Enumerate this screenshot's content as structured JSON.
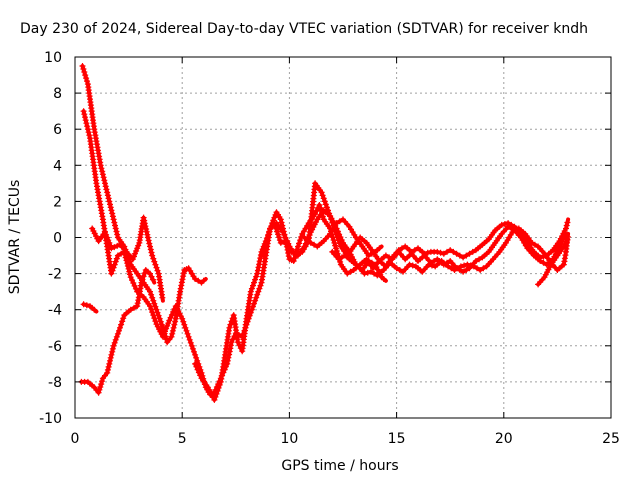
{
  "chart_data": {
    "type": "line",
    "title": "Day 230 of 2024, Sidereal Day-to-day VTEC variation (SDTVAR) for receiver kndh",
    "xlabel": "GPS time / hours",
    "ylabel": "SDTVAR / TECUs",
    "xlim": [
      0,
      25
    ],
    "ylim": [
      -10,
      10
    ],
    "xticks": [
      0,
      5,
      10,
      15,
      20,
      25
    ],
    "yticks": [
      -10,
      -8,
      -6,
      -4,
      -2,
      0,
      2,
      4,
      6,
      8,
      10
    ],
    "grid": true,
    "marker": "+",
    "color": "#ff0000",
    "series": [
      {
        "name": "trace-1",
        "points": [
          [
            0.35,
            9.5
          ],
          [
            0.6,
            8.5
          ],
          [
            0.9,
            6.0
          ],
          [
            1.2,
            4.0
          ],
          [
            1.5,
            2.5
          ],
          [
            1.8,
            1.0
          ],
          [
            2.0,
            0.0
          ],
          [
            2.3,
            -0.5
          ],
          [
            2.6,
            -1.5
          ],
          [
            2.9,
            -2.0
          ],
          [
            3.2,
            -2.5
          ],
          [
            3.5,
            -3.0
          ],
          [
            3.8,
            -4.0
          ],
          [
            4.1,
            -5.0
          ],
          [
            4.3,
            -5.8
          ],
          [
            4.5,
            -5.5
          ],
          [
            4.7,
            -4.5
          ],
          [
            4.9,
            -3.0
          ],
          [
            5.1,
            -1.8
          ],
          [
            5.3,
            -1.7
          ],
          [
            5.6,
            -2.3
          ],
          [
            5.9,
            -2.5
          ],
          [
            6.1,
            -2.3
          ]
        ]
      },
      {
        "name": "trace-2",
        "points": [
          [
            0.4,
            7.0
          ],
          [
            0.7,
            5.5
          ],
          [
            1.0,
            3.0
          ],
          [
            1.3,
            1.0
          ],
          [
            1.5,
            -0.5
          ],
          [
            1.7,
            -2.0
          ],
          [
            2.0,
            -1.0
          ],
          [
            2.3,
            -0.8
          ],
          [
            2.6,
            -2.2
          ],
          [
            2.9,
            -3.0
          ],
          [
            3.2,
            -3.3
          ],
          [
            3.5,
            -3.8
          ],
          [
            3.8,
            -4.8
          ],
          [
            4.1,
            -5.5
          ],
          [
            4.4,
            -4.6
          ],
          [
            4.7,
            -3.8
          ],
          [
            5.0,
            -4.5
          ],
          [
            5.3,
            -5.5
          ],
          [
            5.6,
            -6.5
          ],
          [
            5.9,
            -7.5
          ],
          [
            6.1,
            -8.3
          ],
          [
            6.3,
            -8.7
          ],
          [
            6.5,
            -8.6
          ],
          [
            6.8,
            -7.8
          ],
          [
            7.1,
            -7.0
          ],
          [
            7.3,
            -5.8
          ],
          [
            7.5,
            -5.3
          ],
          [
            7.8,
            -5.5
          ],
          [
            8.1,
            -4.5
          ],
          [
            8.4,
            -3.5
          ],
          [
            8.7,
            -2.5
          ],
          [
            8.9,
            -1.0
          ],
          [
            9.1,
            0.5
          ],
          [
            9.3,
            0.8
          ],
          [
            9.6,
            -0.3
          ],
          [
            9.9,
            -0.2
          ],
          [
            10.1,
            -0.8
          ],
          [
            10.4,
            -1.0
          ],
          [
            10.7,
            -0.5
          ],
          [
            11.0,
            0.3
          ],
          [
            11.3,
            1.0
          ],
          [
            11.6,
            1.5
          ],
          [
            11.9,
            1.2
          ],
          [
            12.2,
            0.5
          ],
          [
            12.5,
            -0.3
          ],
          [
            12.8,
            -0.8
          ],
          [
            13.1,
            -1.5
          ],
          [
            13.4,
            -1.8
          ],
          [
            13.7,
            -1.3
          ],
          [
            14.0,
            -1.5
          ],
          [
            14.3,
            -2.2
          ],
          [
            14.5,
            -2.4
          ]
        ]
      },
      {
        "name": "trace-3",
        "points": [
          [
            0.3,
            -8.0
          ],
          [
            0.6,
            -8.0
          ],
          [
            0.9,
            -8.3
          ],
          [
            1.1,
            -8.6
          ],
          [
            1.3,
            -7.8
          ],
          [
            1.5,
            -7.5
          ],
          [
            1.8,
            -6.0
          ],
          [
            2.1,
            -5.0
          ],
          [
            2.3,
            -4.3
          ],
          [
            2.6,
            -4.0
          ],
          [
            2.9,
            -3.8
          ],
          [
            3.1,
            -2.5
          ],
          [
            3.3,
            -1.8
          ],
          [
            3.5,
            -2.0
          ],
          [
            3.7,
            -2.5
          ]
        ]
      },
      {
        "name": "trace-4",
        "points": [
          [
            0.4,
            -3.7
          ],
          [
            0.7,
            -3.8
          ],
          [
            1.0,
            -4.1
          ]
        ]
      },
      {
        "name": "trace-5",
        "points": [
          [
            0.8,
            0.5
          ],
          [
            1.1,
            -0.2
          ],
          [
            1.4,
            0.3
          ],
          [
            1.7,
            -0.6
          ],
          [
            2.1,
            -0.4
          ],
          [
            2.4,
            -0.8
          ],
          [
            2.7,
            -1.2
          ],
          [
            3.0,
            -0.3
          ],
          [
            3.2,
            1.1
          ],
          [
            3.4,
            0.0
          ],
          [
            3.6,
            -1.0
          ],
          [
            3.9,
            -2.0
          ],
          [
            4.1,
            -3.5
          ]
        ]
      },
      {
        "name": "trace-6",
        "points": [
          [
            5.6,
            -7.0
          ],
          [
            5.9,
            -7.8
          ],
          [
            6.2,
            -8.3
          ],
          [
            6.5,
            -9.0
          ],
          [
            6.8,
            -8.0
          ],
          [
            7.0,
            -6.5
          ],
          [
            7.2,
            -5.0
          ],
          [
            7.4,
            -4.3
          ],
          [
            7.6,
            -5.8
          ],
          [
            7.8,
            -6.3
          ],
          [
            8.0,
            -4.5
          ],
          [
            8.2,
            -3.0
          ],
          [
            8.5,
            -2.0
          ],
          [
            8.7,
            -0.8
          ],
          [
            8.9,
            -0.2
          ],
          [
            9.2,
            0.8
          ],
          [
            9.4,
            1.4
          ],
          [
            9.6,
            1.0
          ],
          [
            9.8,
            0.0
          ],
          [
            10.0,
            -1.2
          ],
          [
            10.2,
            -1.3
          ],
          [
            10.4,
            -0.5
          ],
          [
            10.6,
            0.2
          ],
          [
            10.9,
            0.8
          ],
          [
            11.2,
            1.3
          ],
          [
            11.4,
            1.8
          ],
          [
            11.6,
            1.0
          ],
          [
            11.9,
            0.5
          ],
          [
            12.1,
            -0.3
          ],
          [
            12.4,
            -1.5
          ],
          [
            12.7,
            -2.0
          ],
          [
            13.0,
            -1.8
          ],
          [
            13.3,
            -1.5
          ],
          [
            13.6,
            -1.2
          ],
          [
            13.9,
            -1.7
          ],
          [
            14.2,
            -1.3
          ],
          [
            14.5,
            -1.0
          ],
          [
            14.8,
            -1.2
          ],
          [
            15.1,
            -0.8
          ],
          [
            15.4,
            -1.2
          ],
          [
            15.7,
            -0.9
          ],
          [
            16.0,
            -1.3
          ],
          [
            16.3,
            -1.0
          ],
          [
            16.6,
            -1.4
          ],
          [
            16.9,
            -1.2
          ],
          [
            17.2,
            -1.5
          ],
          [
            17.5,
            -1.3
          ],
          [
            17.8,
            -1.7
          ],
          [
            18.1,
            -1.9
          ],
          [
            18.4,
            -1.7
          ],
          [
            18.7,
            -1.3
          ],
          [
            19.0,
            -1.1
          ],
          [
            19.3,
            -0.8
          ],
          [
            19.6,
            -0.3
          ],
          [
            19.9,
            0.2
          ],
          [
            20.2,
            0.6
          ],
          [
            20.5,
            0.4
          ],
          [
            20.8,
            0.0
          ],
          [
            21.1,
            -0.6
          ],
          [
            21.4,
            -1.0
          ],
          [
            21.7,
            -1.3
          ],
          [
            22.0,
            -1.5
          ],
          [
            22.3,
            -1.2
          ],
          [
            22.6,
            -0.5
          ],
          [
            22.9,
            0.2
          ]
        ]
      },
      {
        "name": "trace-7",
        "points": [
          [
            8.8,
            -1.0
          ],
          [
            9.1,
            0.5
          ],
          [
            9.4,
            0.8
          ],
          [
            9.7,
            0.3
          ],
          [
            10.0,
            -0.5
          ],
          [
            10.3,
            -1.0
          ],
          [
            10.6,
            -0.8
          ],
          [
            10.9,
            -0.2
          ],
          [
            11.2,
            3.0
          ],
          [
            11.5,
            2.5
          ],
          [
            11.8,
            1.5
          ],
          [
            12.1,
            0.5
          ],
          [
            12.4,
            -0.5
          ],
          [
            12.7,
            -1.0
          ],
          [
            13.0,
            -0.5
          ],
          [
            13.3,
            0.0
          ],
          [
            13.6,
            -0.3
          ],
          [
            13.9,
            -0.8
          ],
          [
            14.2,
            -1.3
          ],
          [
            14.5,
            -1.6
          ],
          [
            14.8,
            -1.1
          ],
          [
            15.1,
            -0.7
          ],
          [
            15.4,
            -0.5
          ],
          [
            15.7,
            -0.8
          ],
          [
            16.0,
            -0.6
          ],
          [
            16.3,
            -0.9
          ],
          [
            16.6,
            -0.8
          ],
          [
            16.9,
            -0.8
          ],
          [
            17.2,
            -0.9
          ],
          [
            17.5,
            -0.7
          ],
          [
            17.8,
            -0.9
          ],
          [
            18.1,
            -1.1
          ],
          [
            18.4,
            -0.9
          ],
          [
            18.7,
            -0.7
          ],
          [
            19.0,
            -0.4
          ],
          [
            19.3,
            -0.1
          ],
          [
            19.6,
            0.4
          ],
          [
            19.9,
            0.7
          ],
          [
            20.2,
            0.8
          ],
          [
            20.5,
            0.6
          ],
          [
            20.8,
            0.3
          ],
          [
            21.1,
            -0.3
          ],
          [
            21.4,
            -0.8
          ],
          [
            21.7,
            -1.1
          ],
          [
            22.0,
            -1.0
          ],
          [
            22.3,
            -0.7
          ],
          [
            22.6,
            -0.2
          ],
          [
            22.9,
            0.5
          ],
          [
            23.0,
            1.0
          ]
        ]
      },
      {
        "name": "trace-8",
        "points": [
          [
            12.0,
            -0.8
          ],
          [
            12.3,
            -1.2
          ],
          [
            12.6,
            -1.0
          ],
          [
            12.9,
            -1.3
          ],
          [
            13.2,
            -1.6
          ],
          [
            13.5,
            -2.0
          ],
          [
            13.8,
            -1.9
          ],
          [
            14.1,
            -2.1
          ],
          [
            14.4,
            -1.8
          ],
          [
            14.7,
            -1.4
          ],
          [
            15.0,
            -1.7
          ],
          [
            15.3,
            -1.9
          ],
          [
            15.6,
            -1.5
          ],
          [
            15.9,
            -1.6
          ],
          [
            16.2,
            -1.9
          ],
          [
            16.5,
            -1.5
          ],
          [
            16.8,
            -1.6
          ],
          [
            17.1,
            -1.3
          ],
          [
            17.4,
            -1.6
          ],
          [
            17.7,
            -1.8
          ],
          [
            18.0,
            -1.6
          ],
          [
            18.3,
            -1.5
          ],
          [
            18.6,
            -1.6
          ],
          [
            18.9,
            -1.8
          ],
          [
            19.2,
            -1.6
          ],
          [
            19.5,
            -1.2
          ],
          [
            19.8,
            -0.8
          ],
          [
            20.1,
            -0.3
          ],
          [
            20.4,
            0.3
          ],
          [
            20.7,
            0.5
          ],
          [
            21.0,
            0.2
          ],
          [
            21.3,
            -0.3
          ],
          [
            21.6,
            -0.5
          ],
          [
            21.9,
            -0.9
          ],
          [
            22.2,
            -1.4
          ],
          [
            22.5,
            -1.8
          ],
          [
            22.8,
            -1.5
          ],
          [
            22.9,
            -0.8
          ],
          [
            23.0,
            0.2
          ]
        ]
      },
      {
        "name": "trace-9",
        "points": [
          [
            21.6,
            -2.6
          ],
          [
            21.9,
            -2.2
          ],
          [
            22.2,
            -1.5
          ],
          [
            22.5,
            -1.0
          ],
          [
            22.8,
            -0.5
          ],
          [
            23.0,
            -0.1
          ]
        ]
      },
      {
        "name": "trace-10",
        "points": [
          [
            10.7,
            0.0
          ],
          [
            11.0,
            -0.3
          ],
          [
            11.3,
            -0.5
          ],
          [
            11.6,
            -0.2
          ],
          [
            11.9,
            0.2
          ],
          [
            12.2,
            0.8
          ],
          [
            12.5,
            1.0
          ],
          [
            12.8,
            0.6
          ],
          [
            13.1,
            0.0
          ],
          [
            13.4,
            -0.5
          ],
          [
            13.7,
            -1.0
          ],
          [
            14.0,
            -0.8
          ],
          [
            14.3,
            -0.5
          ]
        ]
      }
    ]
  }
}
